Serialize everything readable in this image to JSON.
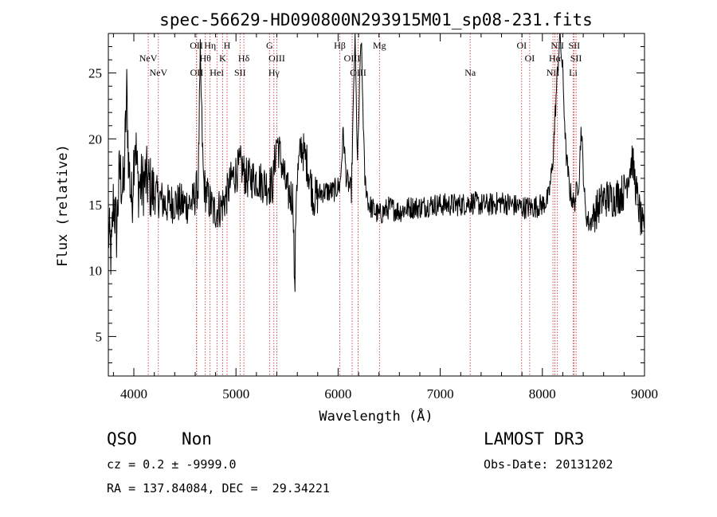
{
  "chart_data": {
    "type": "line",
    "title": "spec-56629-HD090800N293915M01_sp08-231.fits",
    "xlabel": "Wavelength (Å)",
    "ylabel": "Flux (relative)",
    "xlim": [
      3750,
      9000
    ],
    "ylim": [
      2,
      28
    ],
    "x_ticks": [
      4000,
      5000,
      6000,
      7000,
      8000,
      9000
    ],
    "y_ticks": [
      5,
      10,
      15,
      20,
      25
    ],
    "grid": false,
    "series": [
      {
        "name": "spectrum",
        "anchors": [
          [
            3750,
            13.0
          ],
          [
            3780,
            11.0
          ],
          [
            3800,
            15.5
          ],
          [
            3830,
            13.0
          ],
          [
            3860,
            17.5
          ],
          [
            3900,
            16.0
          ],
          [
            3930,
            23.5
          ],
          [
            3950,
            18.0
          ],
          [
            3980,
            15.0
          ],
          [
            4010,
            20.5
          ],
          [
            4040,
            16.5
          ],
          [
            4080,
            16.5
          ],
          [
            4120,
            17.0
          ],
          [
            4180,
            16.0
          ],
          [
            4250,
            15.5
          ],
          [
            4320,
            15.0
          ],
          [
            4400,
            15.2
          ],
          [
            4500,
            15.0
          ],
          [
            4580,
            15.2
          ],
          [
            4630,
            16.5
          ],
          [
            4650,
            26.0
          ],
          [
            4680,
            17.0
          ],
          [
            4700,
            16.0
          ],
          [
            4780,
            14.5
          ],
          [
            4850,
            14.8
          ],
          [
            4900,
            15.5
          ],
          [
            4960,
            17.0
          ],
          [
            5050,
            18.0
          ],
          [
            5100,
            17.0
          ],
          [
            5200,
            17.0
          ],
          [
            5300,
            16.5
          ],
          [
            5360,
            16.5
          ],
          [
            5400,
            20.0
          ],
          [
            5450,
            18.0
          ],
          [
            5500,
            16.0
          ],
          [
            5560,
            15.5
          ],
          [
            5575,
            7.5
          ],
          [
            5590,
            16.5
          ],
          [
            5640,
            19.5
          ],
          [
            5700,
            18.0
          ],
          [
            5760,
            15.5
          ],
          [
            5850,
            16.0
          ],
          [
            5950,
            16.0
          ],
          [
            6020,
            16.5
          ],
          [
            6050,
            20.5
          ],
          [
            6080,
            17.0
          ],
          [
            6130,
            16.0
          ],
          [
            6165,
            28.0
          ],
          [
            6190,
            18.0
          ],
          [
            6225,
            28.0
          ],
          [
            6260,
            17.0
          ],
          [
            6300,
            15.0
          ],
          [
            6400,
            14.2
          ],
          [
            6500,
            14.8
          ],
          [
            6600,
            14.5
          ],
          [
            6700,
            14.8
          ],
          [
            6800,
            14.8
          ],
          [
            6900,
            15.0
          ],
          [
            7000,
            15.0
          ],
          [
            7100,
            15.0
          ],
          [
            7200,
            15.0
          ],
          [
            7300,
            15.2
          ],
          [
            7400,
            15.0
          ],
          [
            7500,
            15.0
          ],
          [
            7600,
            15.2
          ],
          [
            7700,
            15.0
          ],
          [
            7800,
            14.8
          ],
          [
            7900,
            14.8
          ],
          [
            8000,
            15.0
          ],
          [
            8060,
            15.5
          ],
          [
            8100,
            18.0
          ],
          [
            8140,
            24.0
          ],
          [
            8170,
            28.0
          ],
          [
            8200,
            25.0
          ],
          [
            8230,
            19.0
          ],
          [
            8270,
            16.0
          ],
          [
            8310,
            15.0
          ],
          [
            8360,
            17.0
          ],
          [
            8380,
            21.0
          ],
          [
            8420,
            14.5
          ],
          [
            8460,
            13.5
          ],
          [
            8520,
            14.5
          ],
          [
            8600,
            15.5
          ],
          [
            8700,
            15.5
          ],
          [
            8800,
            16.0
          ],
          [
            8880,
            18.5
          ],
          [
            8920,
            16.0
          ],
          [
            8960,
            14.0
          ],
          [
            9000,
            12.5
          ]
        ]
      }
    ],
    "line_markers": [
      {
        "label": "NeV",
        "wavelength": 3426,
        "row": 3
      },
      {
        "label": "NeV",
        "wavelength": 3346,
        "row": 2
      },
      {
        "label": "OII",
        "wavelength": 3727,
        "row": 1
      },
      {
        "label": "OII",
        "wavelength": 3729,
        "row": 3
      },
      {
        "label": "Hη",
        "wavelength": 3835,
        "row": 1
      },
      {
        "label": "Hθ",
        "wavelength": 3797,
        "row": 2
      },
      {
        "label": "HeI",
        "wavelength": 3889,
        "row": 3
      },
      {
        "label": "K",
        "wavelength": 3934,
        "row": 2
      },
      {
        "label": "H",
        "wavelength": 3969,
        "row": 1
      },
      {
        "label": "Hδ",
        "wavelength": 4102,
        "row": 2
      },
      {
        "label": "SII",
        "wavelength": 4072,
        "row": 3
      },
      {
        "label": "G",
        "wavelength": 4305,
        "row": 1
      },
      {
        "label": "OIII",
        "wavelength": 4363,
        "row": 2
      },
      {
        "label": "Hγ",
        "wavelength": 4340,
        "row": 3
      },
      {
        "label": "Hβ",
        "wavelength": 4861,
        "row": 1
      },
      {
        "label": "OIII",
        "wavelength": 4959,
        "row": 2
      },
      {
        "label": "OIII",
        "wavelength": 5007,
        "row": 3
      },
      {
        "label": "Mg",
        "wavelength": 5175,
        "row": 1
      },
      {
        "label": "Na",
        "wavelength": 5893,
        "row": 3
      },
      {
        "label": "OI",
        "wavelength": 6300,
        "row": 1
      },
      {
        "label": "OI",
        "wavelength": 6364,
        "row": 2
      },
      {
        "label": "NII",
        "wavelength": 6548,
        "row": 3
      },
      {
        "label": "NII",
        "wavelength": 6583,
        "row": 1
      },
      {
        "label": "Hα",
        "wavelength": 6563,
        "row": 2
      },
      {
        "label": "SII",
        "wavelength": 6716,
        "row": 1
      },
      {
        "label": "SII",
        "wavelength": 6731,
        "row": 2
      },
      {
        "label": "Li",
        "wavelength": 6708,
        "row": 3
      }
    ],
    "redshift_shift": 1.2376
  },
  "info": {
    "class": "QSO",
    "subclass": "Non",
    "cz": "cz = 0.2 ± -9999.0",
    "radec": "RA = 137.84084, DEC =  29.34221",
    "survey": "LAMOST DR3",
    "obs_date": "Obs-Date: 20131202"
  },
  "colors": {
    "spectrum": "#000000",
    "marker_line": "#cc2222",
    "axis": "#000000"
  }
}
